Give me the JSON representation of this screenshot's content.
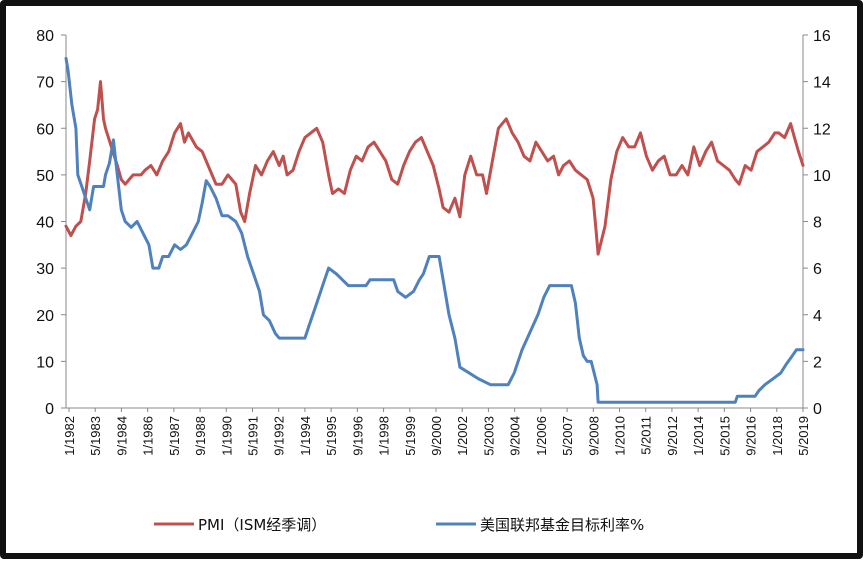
{
  "chart_data": {
    "type": "line",
    "title": "",
    "xlabel": "",
    "ylabel": "",
    "y_left": {
      "min": 0,
      "max": 80,
      "ticks": [
        0,
        10,
        20,
        30,
        40,
        50,
        60,
        70,
        80
      ]
    },
    "y_right": {
      "min": 0,
      "max": 16,
      "ticks": [
        0,
        2,
        4,
        6,
        8,
        10,
        12,
        14,
        16
      ]
    },
    "x_range": [
      1982.0,
      2019.33
    ],
    "x_tick_labels": [
      "1/1982",
      "5/1983",
      "9/1984",
      "1/1986",
      "5/1987",
      "9/1988",
      "1/1990",
      "5/1991",
      "9/1992",
      "1/1994",
      "5/1995",
      "9/1996",
      "1/1998",
      "5/1999",
      "9/2000",
      "1/2002",
      "5/2003",
      "9/2004",
      "1/2006",
      "5/2007",
      "9/2008",
      "1/2010",
      "5/2011",
      "9/2012",
      "1/2014",
      "5/2015",
      "9/2016",
      "1/2018",
      "5/2019"
    ],
    "grid": false,
    "legend_position": "bottom",
    "series": [
      {
        "name": "PMI（ISM经季调）",
        "axis": "left",
        "color": "#C0504D",
        "points": [
          [
            1982.0,
            39
          ],
          [
            1982.25,
            37
          ],
          [
            1982.5,
            39
          ],
          [
            1982.75,
            40
          ],
          [
            1983.0,
            46
          ],
          [
            1983.2,
            53
          ],
          [
            1983.45,
            62
          ],
          [
            1983.6,
            64
          ],
          [
            1983.75,
            70
          ],
          [
            1983.9,
            62
          ],
          [
            1984.0,
            60
          ],
          [
            1984.3,
            56
          ],
          [
            1984.6,
            52
          ],
          [
            1984.8,
            49
          ],
          [
            1985.0,
            48
          ],
          [
            1985.4,
            50
          ],
          [
            1985.8,
            50
          ],
          [
            1986.0,
            51
          ],
          [
            1986.3,
            52
          ],
          [
            1986.6,
            50
          ],
          [
            1986.9,
            53
          ],
          [
            1987.2,
            55
          ],
          [
            1987.5,
            59
          ],
          [
            1987.8,
            61
          ],
          [
            1988.0,
            57
          ],
          [
            1988.2,
            59
          ],
          [
            1988.6,
            56
          ],
          [
            1988.9,
            55
          ],
          [
            1989.2,
            52
          ],
          [
            1989.6,
            48
          ],
          [
            1989.9,
            48
          ],
          [
            1990.2,
            50
          ],
          [
            1990.6,
            48
          ],
          [
            1990.85,
            42
          ],
          [
            1991.05,
            40
          ],
          [
            1991.3,
            46
          ],
          [
            1991.6,
            52
          ],
          [
            1991.9,
            50
          ],
          [
            1992.2,
            53
          ],
          [
            1992.5,
            55
          ],
          [
            1992.8,
            52
          ],
          [
            1993.0,
            54
          ],
          [
            1993.2,
            50
          ],
          [
            1993.5,
            51
          ],
          [
            1993.8,
            55
          ],
          [
            1994.1,
            58
          ],
          [
            1994.4,
            59
          ],
          [
            1994.7,
            60
          ],
          [
            1995.0,
            57
          ],
          [
            1995.3,
            50
          ],
          [
            1995.5,
            46
          ],
          [
            1995.8,
            47
          ],
          [
            1996.1,
            46
          ],
          [
            1996.4,
            51
          ],
          [
            1996.7,
            54
          ],
          [
            1997.0,
            53
          ],
          [
            1997.3,
            56
          ],
          [
            1997.6,
            57
          ],
          [
            1997.9,
            55
          ],
          [
            1998.2,
            53
          ],
          [
            1998.5,
            49
          ],
          [
            1998.8,
            48
          ],
          [
            1999.1,
            52
          ],
          [
            1999.4,
            55
          ],
          [
            1999.7,
            57
          ],
          [
            2000.0,
            58
          ],
          [
            2000.3,
            55
          ],
          [
            2000.6,
            52
          ],
          [
            2000.9,
            47
          ],
          [
            2001.1,
            43
          ],
          [
            2001.4,
            42
          ],
          [
            2001.7,
            45
          ],
          [
            2001.95,
            41
          ],
          [
            2002.2,
            50
          ],
          [
            2002.5,
            54
          ],
          [
            2002.8,
            50
          ],
          [
            2003.1,
            50
          ],
          [
            2003.3,
            46
          ],
          [
            2003.6,
            53
          ],
          [
            2003.9,
            60
          ],
          [
            2004.1,
            61
          ],
          [
            2004.3,
            62
          ],
          [
            2004.6,
            59
          ],
          [
            2004.9,
            57
          ],
          [
            2005.2,
            54
          ],
          [
            2005.5,
            53
          ],
          [
            2005.8,
            57
          ],
          [
            2006.1,
            55
          ],
          [
            2006.4,
            53
          ],
          [
            2006.7,
            54
          ],
          [
            2006.95,
            50
          ],
          [
            2007.2,
            52
          ],
          [
            2007.5,
            53
          ],
          [
            2007.8,
            51
          ],
          [
            2008.1,
            50
          ],
          [
            2008.4,
            49
          ],
          [
            2008.7,
            45
          ],
          [
            2008.85,
            38
          ],
          [
            2008.95,
            33
          ],
          [
            2009.3,
            39
          ],
          [
            2009.6,
            49
          ],
          [
            2009.9,
            55
          ],
          [
            2010.2,
            58
          ],
          [
            2010.5,
            56
          ],
          [
            2010.8,
            56
          ],
          [
            2011.1,
            59
          ],
          [
            2011.4,
            54
          ],
          [
            2011.7,
            51
          ],
          [
            2012.0,
            53
          ],
          [
            2012.3,
            54
          ],
          [
            2012.6,
            50
          ],
          [
            2012.9,
            50
          ],
          [
            2013.2,
            52
          ],
          [
            2013.5,
            50
          ],
          [
            2013.8,
            56
          ],
          [
            2014.1,
            52
          ],
          [
            2014.4,
            55
          ],
          [
            2014.7,
            57
          ],
          [
            2015.0,
            53
          ],
          [
            2015.3,
            52
          ],
          [
            2015.6,
            51
          ],
          [
            2015.9,
            49
          ],
          [
            2016.1,
            48
          ],
          [
            2016.4,
            52
          ],
          [
            2016.7,
            51
          ],
          [
            2017.0,
            55
          ],
          [
            2017.3,
            56
          ],
          [
            2017.6,
            57
          ],
          [
            2017.9,
            59
          ],
          [
            2018.1,
            59
          ],
          [
            2018.4,
            58
          ],
          [
            2018.7,
            61
          ],
          [
            2018.9,
            58
          ],
          [
            2019.1,
            55
          ],
          [
            2019.33,
            52
          ]
        ]
      },
      {
        "name": "美国联邦基金目标利率%",
        "axis": "right",
        "color": "#4F81BD",
        "points": [
          [
            1982.0,
            15
          ],
          [
            1982.1,
            14.5
          ],
          [
            1982.3,
            13
          ],
          [
            1982.5,
            12
          ],
          [
            1982.6,
            10
          ],
          [
            1982.8,
            9.5
          ],
          [
            1983.0,
            9
          ],
          [
            1983.2,
            8.5
          ],
          [
            1983.4,
            9.5
          ],
          [
            1983.7,
            9.5
          ],
          [
            1983.9,
            9.5
          ],
          [
            1984.0,
            10
          ],
          [
            1984.2,
            10.5
          ],
          [
            1984.4,
            11.5
          ],
          [
            1984.6,
            10
          ],
          [
            1984.8,
            8.5
          ],
          [
            1985.0,
            8
          ],
          [
            1985.3,
            7.75
          ],
          [
            1985.6,
            8
          ],
          [
            1985.9,
            7.5
          ],
          [
            1986.2,
            7
          ],
          [
            1986.4,
            6
          ],
          [
            1986.7,
            6
          ],
          [
            1986.9,
            6.5
          ],
          [
            1987.2,
            6.5
          ],
          [
            1987.5,
            7
          ],
          [
            1987.8,
            6.8
          ],
          [
            1988.1,
            7
          ],
          [
            1988.4,
            7.5
          ],
          [
            1988.7,
            8
          ],
          [
            1988.9,
            8.8
          ],
          [
            1989.1,
            9.75
          ],
          [
            1989.3,
            9.5
          ],
          [
            1989.6,
            9
          ],
          [
            1989.9,
            8.25
          ],
          [
            1990.2,
            8.25
          ],
          [
            1990.6,
            8
          ],
          [
            1990.9,
            7.5
          ],
          [
            1991.2,
            6.5
          ],
          [
            1991.5,
            5.75
          ],
          [
            1991.8,
            5
          ],
          [
            1992.0,
            4
          ],
          [
            1992.3,
            3.75
          ],
          [
            1992.6,
            3.2
          ],
          [
            1992.8,
            3
          ],
          [
            1993.5,
            3
          ],
          [
            1994.1,
            3
          ],
          [
            1994.3,
            3.5
          ],
          [
            1994.6,
            4.25
          ],
          [
            1994.9,
            5
          ],
          [
            1995.1,
            5.5
          ],
          [
            1995.3,
            6
          ],
          [
            1995.7,
            5.75
          ],
          [
            1996.0,
            5.5
          ],
          [
            1996.3,
            5.25
          ],
          [
            1997.2,
            5.25
          ],
          [
            1997.4,
            5.5
          ],
          [
            1998.6,
            5.5
          ],
          [
            1998.8,
            5
          ],
          [
            1999.2,
            4.75
          ],
          [
            1999.6,
            5
          ],
          [
            1999.9,
            5.5
          ],
          [
            2000.1,
            5.75
          ],
          [
            2000.4,
            6.5
          ],
          [
            2000.9,
            6.5
          ],
          [
            2001.1,
            5.5
          ],
          [
            2001.4,
            4
          ],
          [
            2001.7,
            3
          ],
          [
            2001.95,
            1.75
          ],
          [
            2002.9,
            1.25
          ],
          [
            2003.5,
            1
          ],
          [
            2004.4,
            1
          ],
          [
            2004.7,
            1.5
          ],
          [
            2005.1,
            2.5
          ],
          [
            2005.5,
            3.25
          ],
          [
            2005.9,
            4
          ],
          [
            2006.2,
            4.75
          ],
          [
            2006.5,
            5.25
          ],
          [
            2007.6,
            5.25
          ],
          [
            2007.8,
            4.5
          ],
          [
            2008.0,
            3
          ],
          [
            2008.2,
            2.25
          ],
          [
            2008.4,
            2
          ],
          [
            2008.6,
            2
          ],
          [
            2008.9,
            1
          ],
          [
            2008.95,
            0.25
          ],
          [
            2015.9,
            0.25
          ],
          [
            2016.0,
            0.5
          ],
          [
            2016.9,
            0.5
          ],
          [
            2017.1,
            0.75
          ],
          [
            2017.4,
            1
          ],
          [
            2017.8,
            1.25
          ],
          [
            2018.2,
            1.5
          ],
          [
            2018.5,
            1.9
          ],
          [
            2018.8,
            2.25
          ],
          [
            2019.0,
            2.5
          ],
          [
            2019.33,
            2.5
          ]
        ]
      }
    ]
  }
}
